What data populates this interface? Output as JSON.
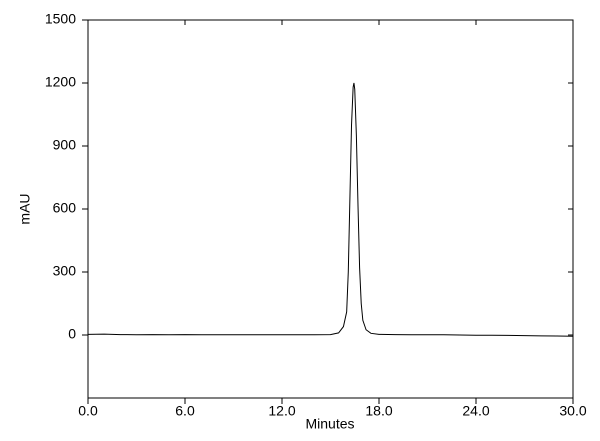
{
  "chart_data": {
    "type": "line",
    "x_label": "Minutes",
    "y_label": "mAU",
    "x": [
      0,
      1,
      2,
      3,
      4,
      5,
      6,
      7,
      8,
      9,
      10,
      11,
      12,
      13,
      14,
      15,
      15.5,
      15.8,
      16.0,
      16.1,
      16.2,
      16.3,
      16.4,
      16.45,
      16.5,
      16.6,
      16.7,
      16.8,
      16.9,
      17.0,
      17.2,
      17.5,
      18,
      19,
      20,
      21,
      22,
      23,
      24,
      25,
      26,
      27,
      28,
      29,
      30
    ],
    "series": [
      {
        "name": "mAU",
        "color": "#000000",
        "values": [
          3,
          4,
          2,
          1,
          2,
          1,
          2,
          1,
          1,
          1,
          1,
          1,
          1,
          1,
          1,
          2,
          10,
          40,
          110,
          300,
          650,
          1000,
          1180,
          1200,
          1170,
          950,
          620,
          320,
          150,
          70,
          25,
          8,
          3,
          2,
          1,
          1,
          1,
          0,
          -1,
          -1,
          -2,
          -3,
          -4,
          -5,
          -6
        ]
      }
    ],
    "xlim": [
      0,
      30
    ],
    "xticks": [
      {
        "value": 0,
        "label": "0.0"
      },
      {
        "value": 6,
        "label": "6.0"
      },
      {
        "value": 12,
        "label": "12.0"
      },
      {
        "value": 18,
        "label": "18.0"
      },
      {
        "value": 24,
        "label": "24.0"
      },
      {
        "value": 30,
        "label": "30.0"
      }
    ],
    "ylim": [
      -300,
      1500
    ],
    "yticks": [
      0,
      300,
      600,
      900,
      1200,
      1500
    ],
    "grid": false
  }
}
